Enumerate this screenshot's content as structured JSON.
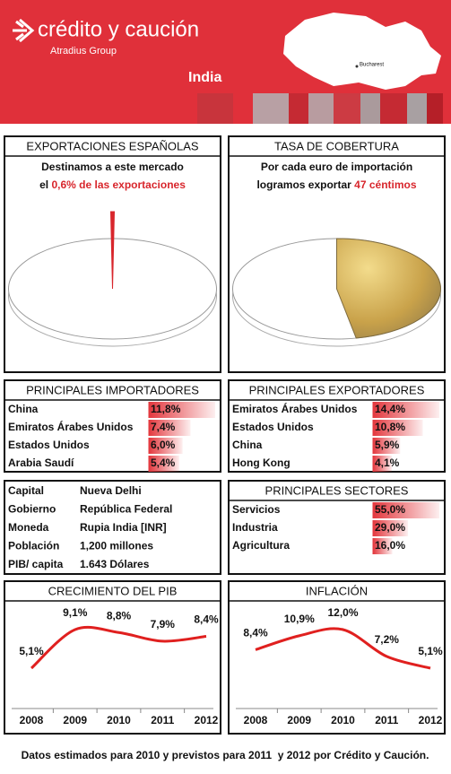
{
  "header": {
    "brand": "crédito y caución",
    "group": "Atradius Group",
    "country": "India",
    "map_label": "Bucharest"
  },
  "chart_data": [
    {
      "type": "pie",
      "title": "EXPORTACIONES ESPAÑOLAS",
      "subtitle": "Destinamos a este mercado",
      "lead": "el",
      "values": [
        0.6
      ],
      "value_labels": [
        "0,6% de las exportaciones"
      ],
      "color": "#d8262c"
    },
    {
      "type": "pie",
      "title": "TASA DE COBERTURA",
      "subtitle": "Por cada euro de importación",
      "lead": "logramos exportar",
      "values": [
        47
      ],
      "value_labels": [
        "47 céntimos"
      ],
      "color": "#d9b45a"
    },
    {
      "type": "bar",
      "title": "PRINCIPALES IMPORTADORES",
      "categories": [
        "China",
        "Emiratos Árabes Unidos",
        "Estados Unidos",
        "Arabia Saudí"
      ],
      "values": [
        11.8,
        7.4,
        6.0,
        5.4
      ],
      "value_labels": [
        "11,8%",
        "7,4%",
        "6,0%",
        "5,4%"
      ],
      "color": "#e3383e"
    },
    {
      "type": "bar",
      "title": "PRINCIPALES EXPORTADORES",
      "categories": [
        "Emiratos Árabes Unidos",
        "Estados Unidos",
        "China",
        "Hong Kong"
      ],
      "values": [
        14.4,
        10.8,
        5.9,
        4.1
      ],
      "value_labels": [
        "14,4%",
        "10,8%",
        "5,9%",
        "4,1%"
      ],
      "color": "#e3383e"
    },
    {
      "type": "bar",
      "title": "PRINCIPALES SECTORES",
      "categories": [
        "Servicios",
        "Industria",
        "Agricultura"
      ],
      "values": [
        55.0,
        29.0,
        16.0
      ],
      "value_labels": [
        "55,0%",
        "29,0%",
        "16,0%"
      ],
      "color": "#e3383e"
    },
    {
      "type": "line",
      "title": "CRECIMIENTO DEL PIB",
      "categories": [
        "2008",
        "2009",
        "2010",
        "2011",
        "2012"
      ],
      "values": [
        5.1,
        9.1,
        8.8,
        7.9,
        8.4
      ],
      "value_labels": [
        "5,1%",
        "9,1%",
        "8,8%",
        "7,9%",
        "8,4%"
      ],
      "color": "#e0201f"
    },
    {
      "type": "line",
      "title": "INFLACIÓN",
      "categories": [
        "2008",
        "2009",
        "2010",
        "2011",
        "2012"
      ],
      "values": [
        8.4,
        10.9,
        12.0,
        7.2,
        5.1
      ],
      "value_labels": [
        "8,4%",
        "10,9%",
        "12,0%",
        "7,2%",
        "5,1%"
      ],
      "color": "#e0201f"
    }
  ],
  "info_table": {
    "rows": [
      [
        "Capital",
        "Nueva Delhi"
      ],
      [
        "Gobierno",
        "República Federal"
      ],
      [
        "Moneda",
        "Rupia India [INR]"
      ],
      [
        "Población",
        "1,200 millones"
      ],
      [
        "PIB/ capita",
        "1.643 Dólares"
      ]
    ]
  },
  "footer": "Datos estimados para 2010 y previstos para 2011  y 2012 por Crédito y Caución."
}
